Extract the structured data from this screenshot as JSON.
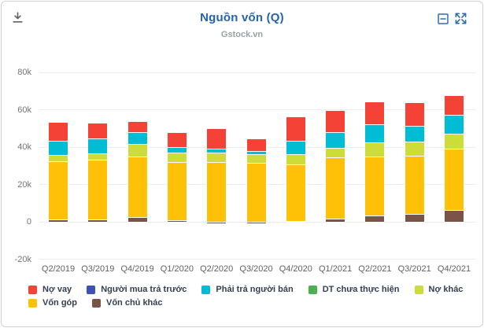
{
  "header": {
    "title": "Nguồn vốn (Q)",
    "subtitle": "Gstock.vn",
    "title_color": "#2563ae",
    "icons": [
      "download-icon",
      "collapse-icon",
      "expand-icon"
    ]
  },
  "chart_data": {
    "type": "bar",
    "stacked": true,
    "title": "Nguồn vốn (Q)",
    "subtitle": "Gstock.vn",
    "unit": "k",
    "ylim": [
      -20,
      80
    ],
    "y_ticks": [
      {
        "label": "80k",
        "value": 80
      },
      {
        "label": "60k",
        "value": 60
      },
      {
        "label": "40k",
        "value": 40
      },
      {
        "label": "20k",
        "value": 20
      },
      {
        "label": "0",
        "value": 0
      },
      {
        "label": "-20k",
        "value": -20
      }
    ],
    "grid": true,
    "legend_position": "bottom",
    "categories": [
      "Q2/2019",
      "Q3/2019",
      "Q4/2019",
      "Q1/2020",
      "Q2/2020",
      "Q3/2020",
      "Q4/2020",
      "Q1/2021",
      "Q2/2021",
      "Q3/2021",
      "Q4/2021"
    ],
    "series": [
      {
        "name": "Vốn chủ khác",
        "color": "#795548",
        "values": [
          1.2,
          1.4,
          2.7,
          0.9,
          -1.0,
          -0.8,
          0.4,
          1.7,
          3.4,
          4.2,
          6.4
        ]
      },
      {
        "name": "Vốn góp",
        "color": "#ffc107",
        "values": [
          31.4,
          31.9,
          32.4,
          31.3,
          32.2,
          31.6,
          30.5,
          33.0,
          31.7,
          31.3,
          32.6
        ]
      },
      {
        "name": "Nợ khác",
        "color": "#cddc39",
        "values": [
          3.2,
          3.5,
          6.6,
          5.0,
          4.9,
          4.4,
          5.3,
          5.0,
          7.3,
          7.3,
          8.3
        ]
      },
      {
        "name": "DT chưa thực hiện",
        "color": "#4caf50",
        "values": [
          0,
          0,
          0,
          0,
          0,
          0,
          0,
          0,
          0,
          0,
          0
        ]
      },
      {
        "name": "Phải trả người bán",
        "color": "#00bcd4",
        "values": [
          7.7,
          7.7,
          6.3,
          2.7,
          2.2,
          1.7,
          7.3,
          8.5,
          9.6,
          8.5,
          10.0
        ]
      },
      {
        "name": "Người mua trả trước",
        "color": "#3f51b5",
        "values": [
          0,
          0,
          0,
          0,
          0,
          0,
          0,
          0,
          0,
          0,
          0
        ]
      },
      {
        "name": "Nợ vay",
        "color": "#f44336",
        "values": [
          9.6,
          8.0,
          5.6,
          7.8,
          10.3,
          6.6,
          12.6,
          11.0,
          12.1,
          12.3,
          10.0
        ]
      }
    ],
    "legend_order": [
      "Nợ vay",
      "Người mua trả trước",
      "Phải trả người bán",
      "DT chưa thực hiện",
      "Nợ khác",
      "Vốn góp",
      "Vốn chủ khác"
    ]
  }
}
